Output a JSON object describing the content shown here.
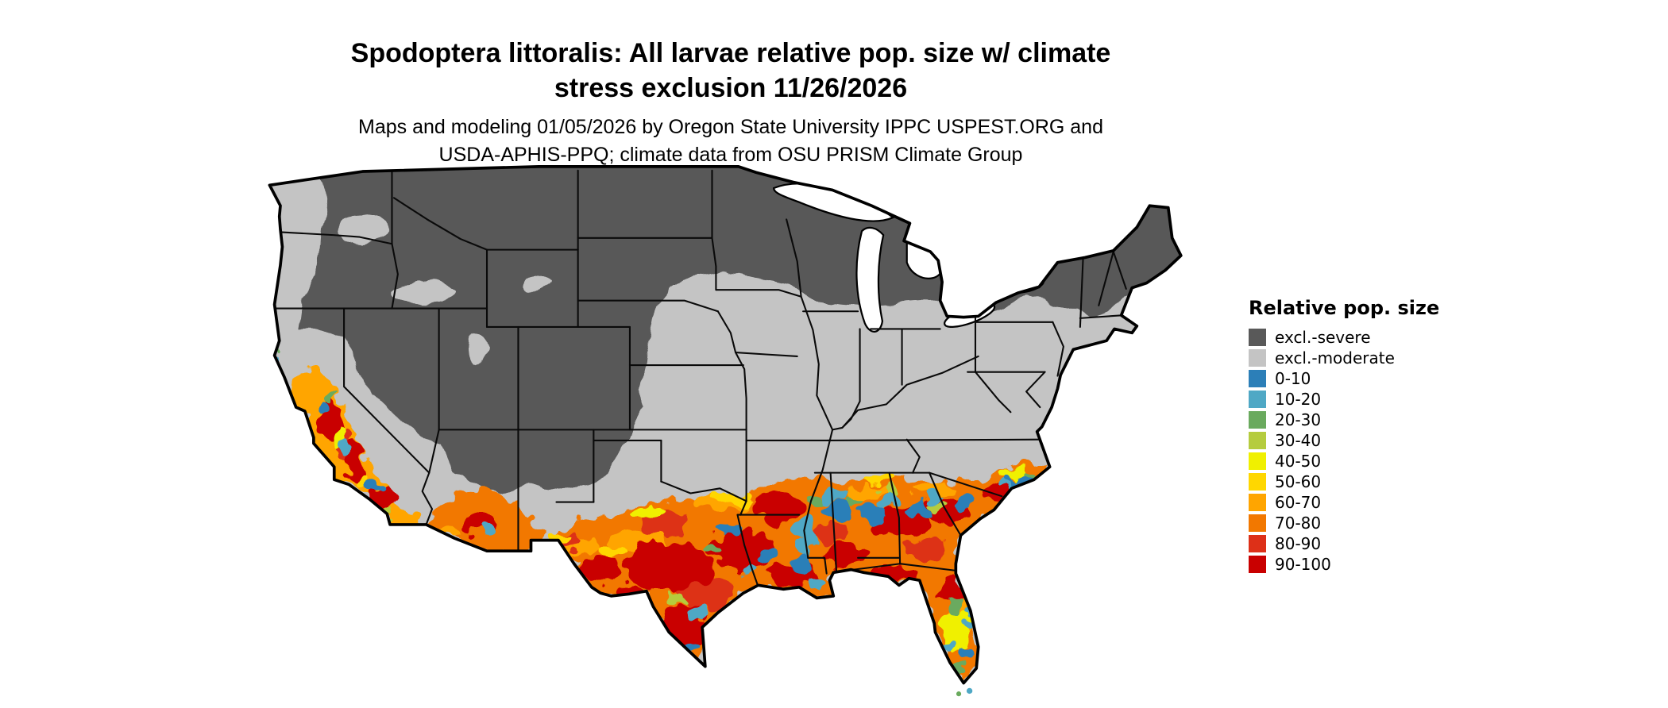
{
  "title": {
    "text_line1": "Spodoptera littoralis: All larvae relative pop. size w/ climate",
    "text_line2": "stress exclusion 11/26/2026"
  },
  "subtitle": {
    "text_line1": "Maps and modeling 01/05/2026 by Oregon State University IPPC USPEST.ORG and",
    "text_line2": "USDA-APHIS-PPQ; climate data from OSU PRISM Climate Group"
  },
  "legend": {
    "title": "Relative pop. size",
    "items": [
      {
        "label": "excl.-severe",
        "color": "#595959"
      },
      {
        "label": "excl.-moderate",
        "color": "#c4c4c4"
      },
      {
        "label": "0-10",
        "color": "#2c7fb8"
      },
      {
        "label": "10-20",
        "color": "#4fa8c5"
      },
      {
        "label": "20-30",
        "color": "#6aaa5e"
      },
      {
        "label": "30-40",
        "color": "#b5cc3e"
      },
      {
        "label": "40-50",
        "color": "#f0f000"
      },
      {
        "label": "50-60",
        "color": "#ffd700"
      },
      {
        "label": "60-70",
        "color": "#ffa500"
      },
      {
        "label": "70-80",
        "color": "#f27800"
      },
      {
        "label": "80-90",
        "color": "#dd3018"
      },
      {
        "label": "90-100",
        "color": "#c90000"
      }
    ]
  },
  "map": {
    "region": "Continental United States",
    "colors": {
      "outline": "#000000",
      "water": "#ffffff",
      "background": "#ffffff"
    }
  }
}
